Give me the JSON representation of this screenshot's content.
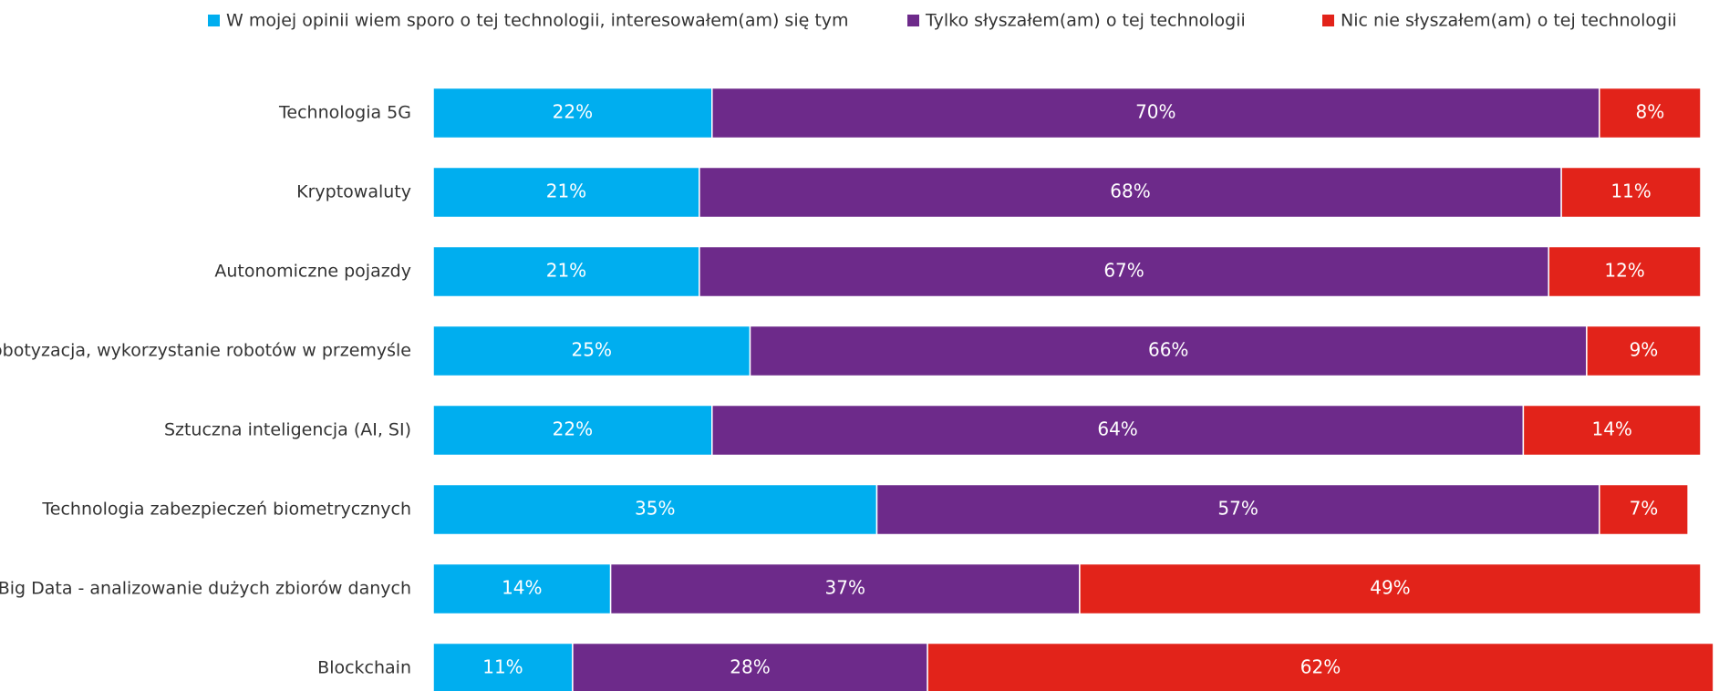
{
  "chart_data": {
    "type": "stacked_bar_horizontal",
    "categories": [
      "Technologia 5G",
      "Kryptowaluty",
      "Autonomiczne pojazdy",
      "Robotyzacja, wykorzystanie robotów w przemyśle",
      "Sztuczna inteligencja (AI, SI)",
      "Technologia zabezpieczeń biometrycznych",
      "Big Data - analizowanie dużych zbiorów danych",
      "Blockchain"
    ],
    "xlim": [
      0,
      100
    ],
    "legend": "top",
    "series": [
      {
        "name": "W mojej opinii wiem sporo o tej technologii, interesowałem(am) się tym",
        "color": "#00aeef",
        "values": [
          22,
          21,
          21,
          25,
          22,
          35,
          14,
          11
        ],
        "value_labels": [
          "22%",
          "21%",
          "21%",
          "25%",
          "22%",
          "35%",
          "14%",
          "11%"
        ]
      },
      {
        "name": "Tylko słyszałem(am) o tej technologii",
        "color": "#6d2a8a",
        "values": [
          70,
          68,
          67,
          66,
          64,
          57,
          37,
          28
        ],
        "value_labels": [
          "70%",
          "68%",
          "67%",
          "66%",
          "64%",
          "57%",
          "37%",
          "28%"
        ]
      },
      {
        "name": "Nic nie słyszałem(am) o tej technologii",
        "color": "#e2231a",
        "values": [
          8,
          11,
          12,
          9,
          14,
          7,
          49,
          62
        ],
        "value_labels": [
          "8%",
          "11%",
          "12%",
          "9%",
          "14%",
          "7%",
          "49%",
          "62%"
        ]
      }
    ]
  }
}
